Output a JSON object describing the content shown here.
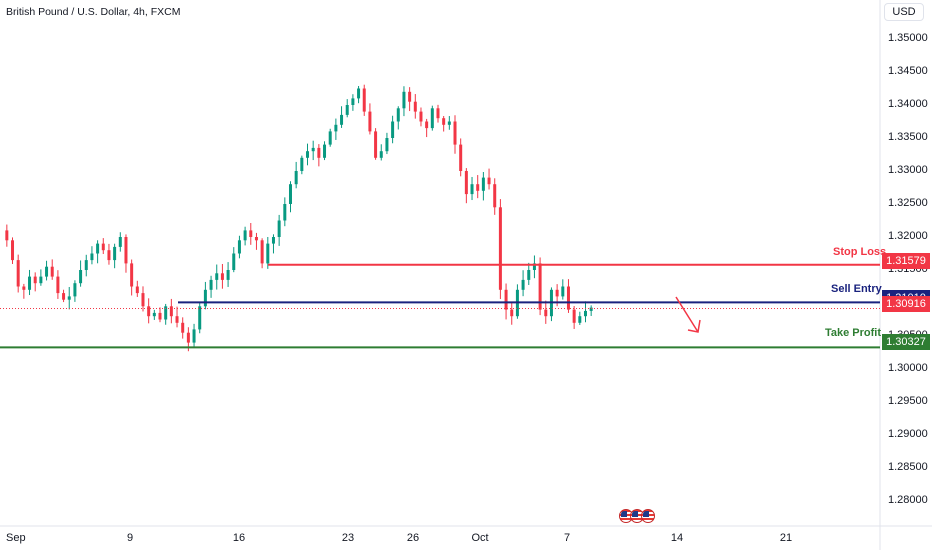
{
  "header": {
    "title": "British Pound / U.S. Dollar, 4h, FXCM",
    "currency_button": "USD"
  },
  "levels": {
    "stop_loss": {
      "label": "Stop Loss",
      "price": "1.31579",
      "value": 1.31579,
      "color": "#f23645"
    },
    "sell_entry": {
      "label": "Sell Entry",
      "price": "1.31010",
      "value": 1.3101,
      "color": "#1a237e"
    },
    "current": {
      "price": "1.30916",
      "value": 1.30916,
      "color": "#f23645"
    },
    "take_profit": {
      "label": "Take Profit",
      "price": "1.30327",
      "value": 1.30327,
      "color": "#2e7d32"
    }
  },
  "chart_data": {
    "type": "candlestick",
    "title": "British Pound / U.S. Dollar, 4h, FXCM",
    "ylim": [
      1.2775,
      1.3525
    ],
    "y_ticks": [
      "1.35000",
      "1.34500",
      "1.34000",
      "1.33500",
      "1.33000",
      "1.32500",
      "1.32000",
      "1.31500",
      "1.31000",
      "1.30500",
      "1.30000",
      "1.29500",
      "1.29000",
      "1.28500",
      "1.28000"
    ],
    "x_ticks": [
      "Sep",
      "9",
      "16",
      "23",
      "26",
      "Oct",
      "7",
      "14",
      "21"
    ],
    "up_color": "#089981",
    "down_color": "#f23645",
    "close_path": [
      1.3195,
      1.3165,
      1.3125,
      1.312,
      1.314,
      1.313,
      1.314,
      1.3155,
      1.314,
      1.3115,
      1.3105,
      1.311,
      1.313,
      1.315,
      1.3165,
      1.3175,
      1.319,
      1.318,
      1.3165,
      1.3185,
      1.32,
      1.316,
      1.3125,
      1.3115,
      1.3095,
      1.308,
      1.3085,
      1.3075,
      1.3095,
      1.308,
      1.307,
      1.3055,
      1.304,
      1.306,
      1.3095,
      1.312,
      1.3135,
      1.3145,
      1.3135,
      1.315,
      1.3175,
      1.3195,
      1.321,
      1.32,
      1.3195,
      1.316,
      1.319,
      1.32,
      1.3225,
      1.325,
      1.328,
      1.33,
      1.332,
      1.333,
      1.3335,
      1.332,
      1.334,
      1.336,
      1.337,
      1.3385,
      1.34,
      1.341,
      1.3425,
      1.339,
      1.336,
      1.332,
      1.333,
      1.335,
      1.3375,
      1.3395,
      1.342,
      1.3405,
      1.339,
      1.3375,
      1.3365,
      1.3395,
      1.338,
      1.337,
      1.3375,
      1.334,
      1.33,
      1.3265,
      1.328,
      1.327,
      1.329,
      1.328,
      1.3245,
      1.312,
      1.309,
      1.308,
      1.312,
      1.3135,
      1.315,
      1.316,
      1.309,
      1.308,
      1.312,
      1.311,
      1.3125,
      1.309,
      1.307,
      1.308,
      1.3088,
      1.3093
    ]
  },
  "watermark_icons": [
    "us-flag-icon",
    "us-flag-icon",
    "us-flag-icon"
  ]
}
